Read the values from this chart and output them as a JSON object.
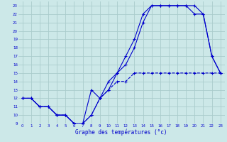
{
  "xlabel": "Graphe des températures (°c)",
  "bg_color": "#cce8e8",
  "grid_color": "#aacccc",
  "line_color": "#0000cc",
  "xlim": [
    -0.5,
    23.5
  ],
  "ylim": [
    9,
    23.5
  ],
  "xticks": [
    0,
    1,
    2,
    3,
    4,
    5,
    6,
    7,
    8,
    9,
    10,
    11,
    12,
    13,
    14,
    15,
    16,
    17,
    18,
    19,
    20,
    21,
    22,
    23
  ],
  "yticks": [
    9,
    10,
    11,
    12,
    13,
    14,
    15,
    16,
    17,
    18,
    19,
    20,
    21,
    22,
    23
  ],
  "line1_x": [
    0,
    1,
    2,
    3,
    4,
    5,
    6,
    7,
    8,
    9,
    10,
    11,
    12,
    13,
    14,
    15,
    16,
    17,
    18,
    19,
    20,
    21,
    22,
    23
  ],
  "line1_y": [
    12,
    12,
    11,
    11,
    10,
    10,
    9,
    9,
    13,
    12,
    14,
    15,
    17,
    19,
    22,
    23,
    23,
    23,
    23,
    23,
    22,
    22,
    17,
    15
  ],
  "line2_x": [
    0,
    1,
    2,
    3,
    4,
    5,
    6,
    7,
    8,
    9,
    10,
    11,
    12,
    13,
    14,
    15,
    16,
    17,
    18,
    19,
    20,
    21,
    22,
    23
  ],
  "line2_y": [
    12,
    12,
    11,
    11,
    10,
    10,
    9,
    9,
    10,
    12,
    13,
    15,
    16,
    18,
    21,
    23,
    23,
    23,
    23,
    23,
    23,
    22,
    17,
    15
  ],
  "line3_x": [
    0,
    1,
    2,
    3,
    4,
    5,
    6,
    7,
    8,
    9,
    10,
    11,
    12,
    13,
    14,
    15,
    16,
    17,
    18,
    19,
    20,
    21,
    22,
    23
  ],
  "line3_y": [
    12,
    12,
    11,
    11,
    10,
    10,
    9,
    9,
    10,
    12,
    13,
    14,
    14,
    15,
    15,
    15,
    15,
    15,
    15,
    15,
    15,
    15,
    15,
    15
  ],
  "marker": "+"
}
